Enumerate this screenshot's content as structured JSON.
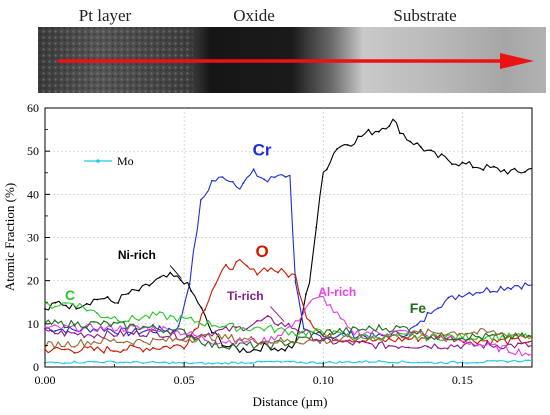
{
  "region_labels": [
    "Pt layer",
    "Oxide",
    "Substrate"
  ],
  "chart_data": {
    "type": "line",
    "title": "",
    "xlabel": "Distance (µm)",
    "ylabel": "Atomic Fraction (%)",
    "xlim": [
      0,
      0.175
    ],
    "ylim": [
      0,
      60
    ],
    "xticks": [
      0.0,
      0.05,
      0.1,
      0.15
    ],
    "xtick_labels": [
      "0.00",
      "0.05",
      "0.10",
      "0.15"
    ],
    "yticks": [
      0,
      10,
      20,
      30,
      40,
      50,
      60
    ],
    "ytick_labels": [
      "0",
      "10",
      "20",
      "30",
      "40",
      "50",
      "60"
    ],
    "grid": true,
    "legend": {
      "placement": "top-left",
      "entries": [
        "Mo"
      ]
    },
    "series": [
      {
        "name": "Cr",
        "color": "#1f2fd6",
        "points": [
          [
            0,
            9
          ],
          [
            0.01,
            8.5
          ],
          [
            0.02,
            9
          ],
          [
            0.03,
            8
          ],
          [
            0.04,
            8.5
          ],
          [
            0.048,
            9
          ],
          [
            0.052,
            20
          ],
          [
            0.056,
            38
          ],
          [
            0.06,
            43
          ],
          [
            0.065,
            44
          ],
          [
            0.07,
            42
          ],
          [
            0.075,
            45
          ],
          [
            0.08,
            43
          ],
          [
            0.085,
            45
          ],
          [
            0.088,
            44
          ],
          [
            0.09,
            20
          ],
          [
            0.093,
            8
          ],
          [
            0.1,
            7
          ],
          [
            0.11,
            7.5
          ],
          [
            0.12,
            7
          ],
          [
            0.13,
            8
          ],
          [
            0.135,
            10
          ],
          [
            0.14,
            14
          ],
          [
            0.15,
            17
          ],
          [
            0.16,
            18
          ],
          [
            0.17,
            19
          ],
          [
            0.175,
            19
          ]
        ]
      },
      {
        "name": "Ni-rich",
        "color": "#000000",
        "points": [
          [
            0,
            13
          ],
          [
            0.005,
            15
          ],
          [
            0.01,
            14
          ],
          [
            0.015,
            15
          ],
          [
            0.02,
            16
          ],
          [
            0.025,
            15
          ],
          [
            0.03,
            17
          ],
          [
            0.035,
            18
          ],
          [
            0.04,
            20
          ],
          [
            0.045,
            21
          ],
          [
            0.05,
            20
          ],
          [
            0.055,
            15
          ],
          [
            0.06,
            8
          ],
          [
            0.065,
            5
          ],
          [
            0.07,
            4
          ],
          [
            0.075,
            4
          ],
          [
            0.08,
            5
          ],
          [
            0.085,
            4
          ],
          [
            0.09,
            5
          ],
          [
            0.095,
            20
          ],
          [
            0.1,
            45
          ],
          [
            0.105,
            51
          ],
          [
            0.11,
            52
          ],
          [
            0.115,
            54
          ],
          [
            0.12,
            55
          ],
          [
            0.125,
            57
          ],
          [
            0.13,
            53
          ],
          [
            0.14,
            49
          ],
          [
            0.15,
            47
          ],
          [
            0.16,
            46
          ],
          [
            0.17,
            45
          ],
          [
            0.175,
            46
          ]
        ]
      },
      {
        "name": "O",
        "color": "#cc1a00",
        "points": [
          [
            0,
            4
          ],
          [
            0.02,
            4
          ],
          [
            0.04,
            4.5
          ],
          [
            0.05,
            5
          ],
          [
            0.055,
            10
          ],
          [
            0.06,
            18
          ],
          [
            0.065,
            23
          ],
          [
            0.07,
            24
          ],
          [
            0.075,
            22
          ],
          [
            0.08,
            23
          ],
          [
            0.085,
            22
          ],
          [
            0.09,
            21
          ],
          [
            0.094,
            12
          ],
          [
            0.1,
            7
          ],
          [
            0.12,
            6
          ],
          [
            0.14,
            7
          ],
          [
            0.16,
            6
          ],
          [
            0.175,
            6
          ]
        ]
      },
      {
        "name": "Ti-rich",
        "color": "#8b1a8b",
        "points": [
          [
            0,
            8
          ],
          [
            0.02,
            7.5
          ],
          [
            0.04,
            8
          ],
          [
            0.05,
            7
          ],
          [
            0.06,
            8
          ],
          [
            0.07,
            9
          ],
          [
            0.08,
            11
          ],
          [
            0.09,
            9
          ],
          [
            0.1,
            6
          ],
          [
            0.12,
            5
          ],
          [
            0.14,
            5
          ],
          [
            0.16,
            5
          ],
          [
            0.175,
            5
          ]
        ]
      },
      {
        "name": "Al-rich",
        "color": "#e83fe8",
        "points": [
          [
            0,
            9
          ],
          [
            0.02,
            9
          ],
          [
            0.04,
            9
          ],
          [
            0.05,
            8
          ],
          [
            0.06,
            6
          ],
          [
            0.07,
            6
          ],
          [
            0.08,
            6
          ],
          [
            0.09,
            10
          ],
          [
            0.095,
            15
          ],
          [
            0.1,
            16
          ],
          [
            0.105,
            12
          ],
          [
            0.11,
            8
          ],
          [
            0.13,
            8
          ],
          [
            0.15,
            6
          ],
          [
            0.175,
            3
          ]
        ]
      },
      {
        "name": "C",
        "color": "#29c729",
        "points": [
          [
            0,
            14
          ],
          [
            0.01,
            15
          ],
          [
            0.02,
            12
          ],
          [
            0.03,
            11
          ],
          [
            0.04,
            12
          ],
          [
            0.05,
            11
          ],
          [
            0.06,
            10
          ],
          [
            0.07,
            9
          ],
          [
            0.08,
            9
          ],
          [
            0.09,
            8
          ],
          [
            0.1,
            8
          ],
          [
            0.11,
            7
          ],
          [
            0.13,
            7
          ],
          [
            0.15,
            7
          ],
          [
            0.175,
            7
          ]
        ]
      },
      {
        "name": "Fe",
        "color": "#1b6d1b",
        "points": [
          [
            0,
            10
          ],
          [
            0.02,
            10
          ],
          [
            0.04,
            9
          ],
          [
            0.05,
            8
          ],
          [
            0.06,
            5
          ],
          [
            0.07,
            5
          ],
          [
            0.08,
            5
          ],
          [
            0.09,
            6
          ],
          [
            0.1,
            8
          ],
          [
            0.12,
            9
          ],
          [
            0.13,
            9
          ],
          [
            0.14,
            7
          ],
          [
            0.15,
            7
          ],
          [
            0.175,
            7
          ]
        ]
      },
      {
        "name": "Mo",
        "color": "#22c8e8",
        "points": [
          [
            0,
            1
          ],
          [
            0.02,
            1.2
          ],
          [
            0.04,
            1
          ],
          [
            0.06,
            0.8
          ],
          [
            0.08,
            1.2
          ],
          [
            0.1,
            1
          ],
          [
            0.12,
            1.3
          ],
          [
            0.14,
            1
          ],
          [
            0.16,
            1.2
          ],
          [
            0.175,
            1.5
          ]
        ]
      },
      {
        "name": "",
        "color": "#996633",
        "points": [
          [
            0,
            5
          ],
          [
            0.02,
            6
          ],
          [
            0.04,
            6
          ],
          [
            0.06,
            7
          ],
          [
            0.08,
            6
          ],
          [
            0.1,
            6
          ],
          [
            0.12,
            7
          ],
          [
            0.14,
            8
          ],
          [
            0.16,
            8
          ],
          [
            0.175,
            7
          ]
        ]
      }
    ],
    "annotations": [
      {
        "text": "Cr",
        "x": 0.078,
        "y": 49,
        "color": "#1f2fd6",
        "size": 17
      },
      {
        "text": "Ni-rich",
        "x": 0.033,
        "y": 25,
        "color": "#000000",
        "size": 12
      },
      {
        "text": "O",
        "x": 0.078,
        "y": 25.5,
        "color": "#cc1a00",
        "size": 17
      },
      {
        "text": "Ti-rich",
        "x": 0.072,
        "y": 15.5,
        "color": "#8b1a8b",
        "size": 12
      },
      {
        "text": "Al-rich",
        "x": 0.105,
        "y": 16.5,
        "color": "#e83fe8",
        "size": 12
      },
      {
        "text": "C",
        "x": 0.009,
        "y": 15.5,
        "color": "#29c729",
        "size": 14
      },
      {
        "text": "Fe",
        "x": 0.134,
        "y": 12.5,
        "color": "#1b6d1b",
        "size": 14
      }
    ]
  }
}
